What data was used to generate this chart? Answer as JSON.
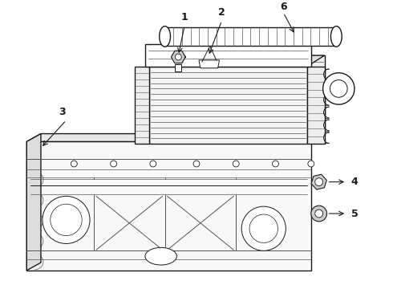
{
  "bg_color": "#ffffff",
  "line_color": "#1a1a1a",
  "gray": "#555555",
  "light_gray": "#888888",
  "lw_main": 1.0,
  "lw_thin": 0.5,
  "lw_med": 0.7
}
